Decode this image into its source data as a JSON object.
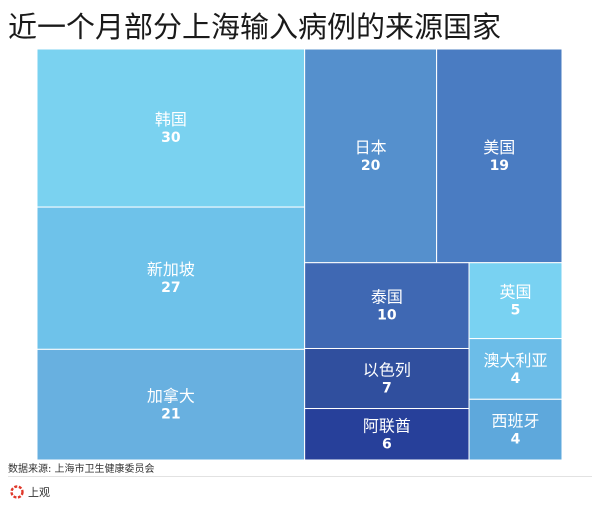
{
  "title": "近一个月部分上海输入病例的来源国家",
  "source": "数据来源: 上海市卫生健康委员会",
  "brand": {
    "name": "上观",
    "logo_color": "#e0382a"
  },
  "chart_data": {
    "type": "treemap",
    "items": [
      {
        "name": "韩国",
        "value": 30,
        "color": "#7ad2f0"
      },
      {
        "name": "新加坡",
        "value": 27,
        "color": "#6ec2ea"
      },
      {
        "name": "加拿大",
        "value": 21,
        "color": "#68b0e0"
      },
      {
        "name": "日本",
        "value": 20,
        "color": "#5590cd"
      },
      {
        "name": "美国",
        "value": 19,
        "color": "#4a7cc2"
      },
      {
        "name": "泰国",
        "value": 10,
        "color": "#3f68b3"
      },
      {
        "name": "以色列",
        "value": 7,
        "color": "#304f9e"
      },
      {
        "name": "阿联酋",
        "value": 6,
        "color": "#27409a"
      },
      {
        "name": "英国",
        "value": 5,
        "color": "#79d2f2"
      },
      {
        "name": "澳大利亚",
        "value": 4,
        "color": "#6cbde8"
      },
      {
        "name": "西班牙",
        "value": 4,
        "color": "#5ea8dc"
      }
    ]
  }
}
